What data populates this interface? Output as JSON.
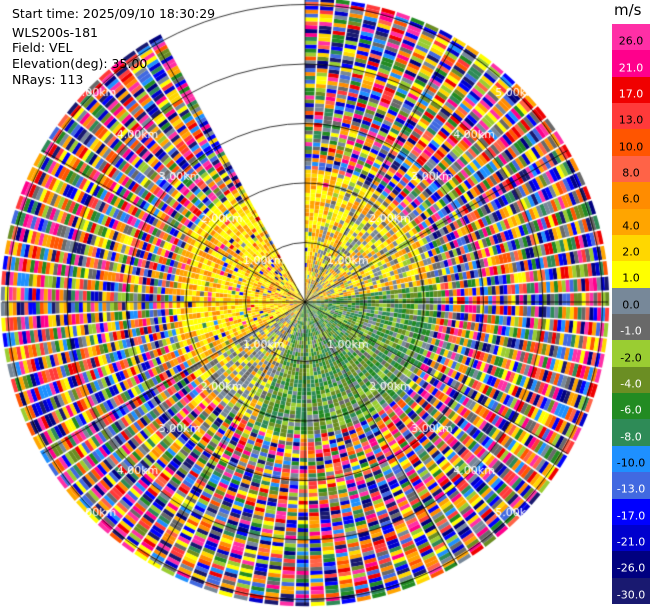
{
  "header": {
    "start_time": "Start time: 2025/09/10 18:30:29",
    "radar": "WLS200s-181",
    "field": "Field: VEL",
    "elevation": "Elevation(deg): 35.00",
    "nrays": "NRays: 113"
  },
  "range_ring_labels": [
    "1.00km",
    "2.00km",
    "3.00km",
    "4.00km",
    "5.00km"
  ],
  "colorbar": {
    "unit": "m/s",
    "bands": [
      {
        "label": "26.0",
        "color": "#ff2fa6"
      },
      {
        "label": "21.0",
        "color": "#ff008c"
      },
      {
        "label": "17.0",
        "color": "#f00000"
      },
      {
        "label": "13.0",
        "color": "#ff3a3a"
      },
      {
        "label": "10.0",
        "color": "#ff5500"
      },
      {
        "label": "8.0",
        "color": "#ff6347"
      },
      {
        "label": "6.0",
        "color": "#ff8c00"
      },
      {
        "label": "4.0",
        "color": "#ffa500"
      },
      {
        "label": "2.0",
        "color": "#ffd700"
      },
      {
        "label": "1.0",
        "color": "#ffff00"
      },
      {
        "label": "0.0",
        "color": "#778899"
      },
      {
        "label": "-1.0",
        "color": "#696969"
      },
      {
        "label": "-2.0",
        "color": "#9acd32"
      },
      {
        "label": "-4.0",
        "color": "#6b8e23"
      },
      {
        "label": "-6.0",
        "color": "#228b22"
      },
      {
        "label": "-8.0",
        "color": "#2e8b57"
      },
      {
        "label": "-10.0",
        "color": "#1e90ff"
      },
      {
        "label": "-13.0",
        "color": "#4169e1"
      },
      {
        "label": "-17.0",
        "color": "#0000ff"
      },
      {
        "label": "-21.0",
        "color": "#0000cd"
      },
      {
        "label": "-26.0",
        "color": "#000080"
      },
      {
        "label": "-30.0",
        "color": "#191970"
      }
    ]
  }
}
